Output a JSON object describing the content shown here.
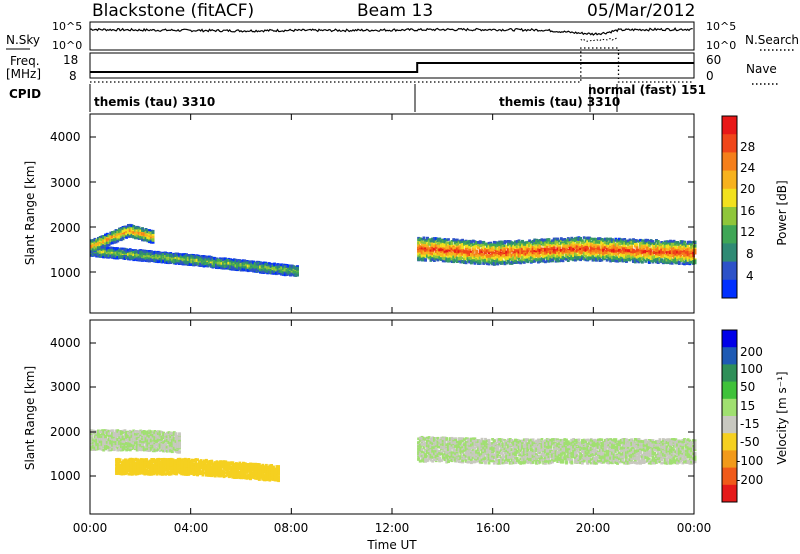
{
  "header": {
    "title": "Blackstone (fitACF)",
    "beam": "Beam 13",
    "date": "05/Mar/2012"
  },
  "noise_panel": {
    "left_label": "N.Sky",
    "left_ticks": [
      "10^5",
      "10^0"
    ],
    "right_label": "N.Search",
    "right_ticks": [
      "10^5",
      "10^0"
    ]
  },
  "freq_panel": {
    "left_label_line1": "Freq.",
    "left_label_line2": "[MHz]",
    "left_ticks": [
      "18",
      "8"
    ],
    "right_label": "Nave",
    "right_ticks": [
      "60",
      "0"
    ]
  },
  "cpid": {
    "label": "CPID",
    "modes": [
      {
        "text": "themis (tau) 3310"
      },
      {
        "text": "themis (tau) 3310"
      },
      {
        "text": "normal (fast) 151"
      }
    ]
  },
  "power_panel": {
    "ylabel": "Slant Range [km]",
    "yticks": [
      "4000",
      "3000",
      "2000",
      "1000"
    ],
    "colorbar_label": "Power [dB]",
    "colorbar_ticks": [
      "28",
      "24",
      "20",
      "16",
      "12",
      "8",
      "4"
    ],
    "colors": [
      "#0030ff",
      "#2d52c8",
      "#2f8a74",
      "#3fa656",
      "#8fc63a",
      "#f2e11e",
      "#f7b21e",
      "#f57f1b",
      "#f0461a",
      "#e81818"
    ]
  },
  "velocity_panel": {
    "ylabel": "Slant Range [km]",
    "yticks": [
      "4000",
      "3000",
      "2000",
      "1000"
    ],
    "colorbar_label": "Velocity [m s⁻¹]",
    "colorbar_ticks": [
      "200",
      "100",
      "50",
      "15",
      "-15",
      "-50",
      "-100",
      "-200"
    ],
    "colors": [
      "#0000e8",
      "#1e5ab4",
      "#2f8f58",
      "#3fc23a",
      "#a0e070",
      "#c8c8c0",
      "#f5d020",
      "#f29a1a",
      "#f05a1a",
      "#e51a1a"
    ]
  },
  "x_axis": {
    "label": "Time UT",
    "ticks": [
      "00:00",
      "04:00",
      "08:00",
      "12:00",
      "16:00",
      "20:00",
      "00:00"
    ]
  },
  "chart_data": [
    {
      "type": "line",
      "name": "noise",
      "x_range_hours": [
        0,
        24
      ],
      "series": [
        {
          "name": "N.Sky",
          "x": [
            0,
            0.5,
            2,
            4,
            6,
            8,
            10,
            12,
            14,
            16,
            18,
            19.5,
            20,
            20.5,
            21,
            22,
            24
          ],
          "y_log10": [
            4.2,
            4.1,
            4.0,
            3.9,
            3.8,
            3.9,
            3.9,
            4.0,
            4.1,
            4.1,
            4.0,
            3.2,
            3.0,
            3.3,
            4.0,
            4.1,
            4.2
          ]
        },
        {
          "name": "N.Search",
          "x": [
            19.5,
            20,
            20.5,
            21
          ],
          "y_log10": [
            1.5,
            1.3,
            1.6,
            1.8
          ]
        }
      ]
    },
    {
      "type": "line",
      "name": "frequency",
      "x_range_hours": [
        0,
        24
      ],
      "ylim": [
        8,
        18
      ],
      "series": [
        {
          "name": "Freq.",
          "x": [
            0,
            13,
            13,
            24
          ],
          "y": [
            10,
            10,
            14.5,
            14.5
          ]
        },
        {
          "name": "Nave",
          "x": [
            0,
            19.5,
            19.5,
            21,
            21,
            24
          ],
          "y": [
            5,
            5,
            22,
            22,
            5,
            5
          ]
        }
      ]
    },
    {
      "type": "heatmap",
      "name": "power",
      "x_range_hours": [
        0,
        24
      ],
      "y_range_km": [
        200,
        4600
      ],
      "value_unit": "dB",
      "value_range": [
        0,
        30
      ],
      "features": [
        {
          "x": [
            0,
            4,
            8.2
          ],
          "y_center": [
            1600,
            1400,
            1150
          ],
          "thickness": 220,
          "peak": 14
        },
        {
          "x": [
            0,
            1.5,
            2.5
          ],
          "y_center": [
            1700,
            2050,
            1900
          ],
          "thickness": 260,
          "peak": 22
        },
        {
          "x": [
            13,
            16,
            19.5,
            24
          ],
          "y_center": [
            1650,
            1550,
            1650,
            1550
          ],
          "thickness": 500,
          "peak": 27
        }
      ]
    },
    {
      "type": "heatmap",
      "name": "velocity",
      "x_range_hours": [
        0,
        24
      ],
      "y_range_km": [
        200,
        4600
      ],
      "value_unit": "m/s",
      "value_range": [
        -200,
        200
      ],
      "features": [
        {
          "x": [
            0,
            2,
            3.5
          ],
          "y_center": [
            1900,
            1900,
            1850
          ],
          "thickness": 450,
          "value": 0
        },
        {
          "x": [
            1,
            4,
            7.5
          ],
          "y_center": [
            1300,
            1300,
            1150
          ],
          "thickness": 350,
          "value": -60
        },
        {
          "x": [
            13,
            16,
            24
          ],
          "y_center": [
            1700,
            1650,
            1650
          ],
          "thickness": 550,
          "value": 0
        }
      ]
    }
  ]
}
